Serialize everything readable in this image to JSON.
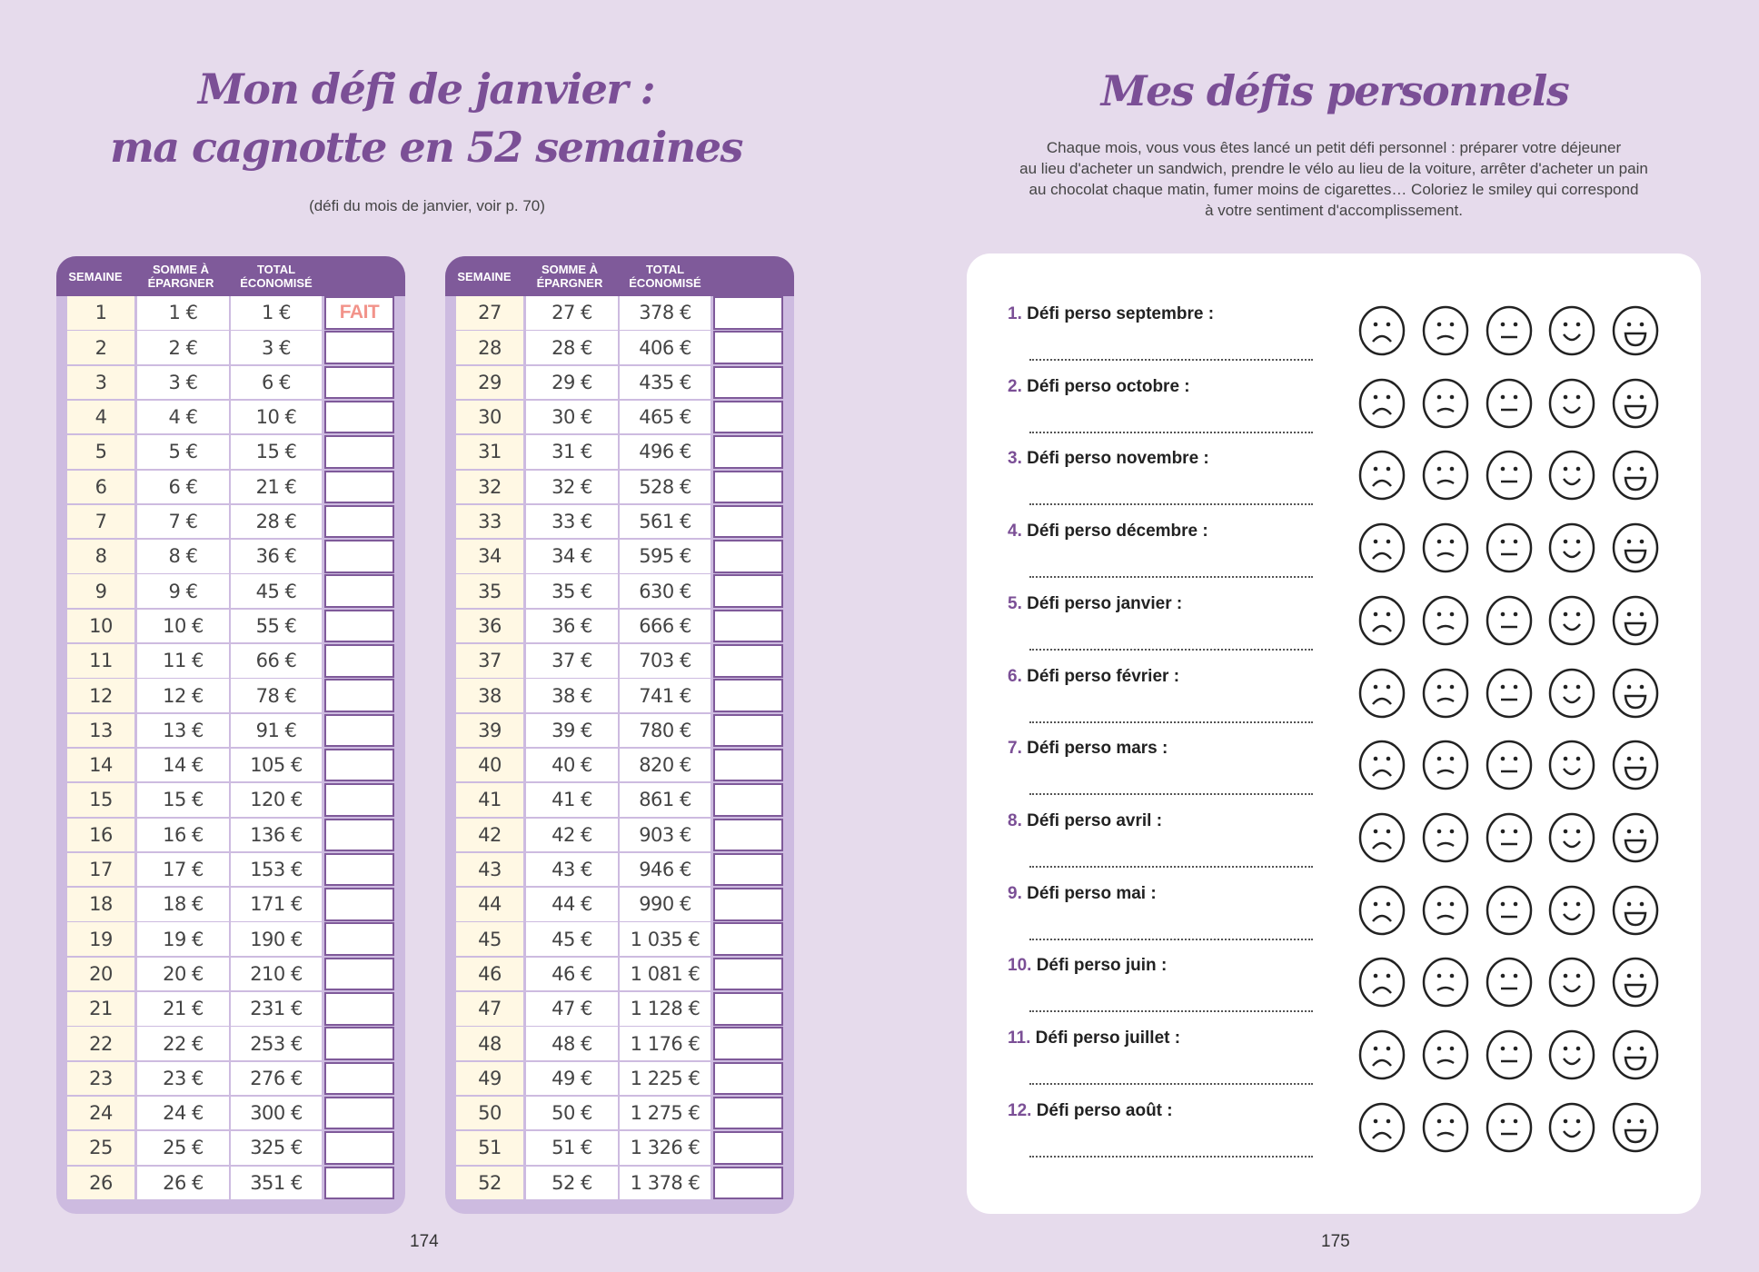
{
  "left": {
    "title_line1": "Mon défi de janvier :",
    "title_line2": "ma cagnotte en 52 semaines",
    "subtitle": "(défi du mois de janvier, voir p. 70)",
    "headers": [
      "SEMAINE",
      "SOMME À ÉPARGNER",
      "TOTAL ÉCONOMISÉ",
      ""
    ],
    "done_label": "FAIT",
    "rows": [
      [
        "1",
        "1 €",
        "1 €"
      ],
      [
        "2",
        "2 €",
        "3 €"
      ],
      [
        "3",
        "3 €",
        "6 €"
      ],
      [
        "4",
        "4 €",
        "10 €"
      ],
      [
        "5",
        "5 €",
        "15 €"
      ],
      [
        "6",
        "6 €",
        "21 €"
      ],
      [
        "7",
        "7 €",
        "28 €"
      ],
      [
        "8",
        "8 €",
        "36 €"
      ],
      [
        "9",
        "9 €",
        "45 €"
      ],
      [
        "10",
        "10 €",
        "55 €"
      ],
      [
        "11",
        "11 €",
        "66 €"
      ],
      [
        "12",
        "12 €",
        "78 €"
      ],
      [
        "13",
        "13 €",
        "91 €"
      ],
      [
        "14",
        "14 €",
        "105 €"
      ],
      [
        "15",
        "15 €",
        "120 €"
      ],
      [
        "16",
        "16 €",
        "136 €"
      ],
      [
        "17",
        "17 €",
        "153 €"
      ],
      [
        "18",
        "18 €",
        "171 €"
      ],
      [
        "19",
        "19 €",
        "190 €"
      ],
      [
        "20",
        "20 €",
        "210 €"
      ],
      [
        "21",
        "21 €",
        "231 €"
      ],
      [
        "22",
        "22 €",
        "253 €"
      ],
      [
        "23",
        "23 €",
        "276 €"
      ],
      [
        "24",
        "24 €",
        "300 €"
      ],
      [
        "25",
        "25 €",
        "325 €"
      ],
      [
        "26",
        "26 €",
        "351 €"
      ],
      [
        "27",
        "27 €",
        "378 €"
      ],
      [
        "28",
        "28 €",
        "406 €"
      ],
      [
        "29",
        "29 €",
        "435 €"
      ],
      [
        "30",
        "30 €",
        "465 €"
      ],
      [
        "31",
        "31 €",
        "496 €"
      ],
      [
        "32",
        "32 €",
        "528 €"
      ],
      [
        "33",
        "33 €",
        "561 €"
      ],
      [
        "34",
        "34 €",
        "595 €"
      ],
      [
        "35",
        "35 €",
        "630 €"
      ],
      [
        "36",
        "36 €",
        "666 €"
      ],
      [
        "37",
        "37 €",
        "703 €"
      ],
      [
        "38",
        "38 €",
        "741 €"
      ],
      [
        "39",
        "39 €",
        "780 €"
      ],
      [
        "40",
        "40 €",
        "820 €"
      ],
      [
        "41",
        "41 €",
        "861 €"
      ],
      [
        "42",
        "42 €",
        "903 €"
      ],
      [
        "43",
        "43 €",
        "946 €"
      ],
      [
        "44",
        "44 €",
        "990 €"
      ],
      [
        "45",
        "45 €",
        "1 035 €"
      ],
      [
        "46",
        "46 €",
        "1 081 €"
      ],
      [
        "47",
        "47 €",
        "1 128 €"
      ],
      [
        "48",
        "48 €",
        "1 176 €"
      ],
      [
        "49",
        "49 €",
        "1 225 €"
      ],
      [
        "50",
        "50 €",
        "1 275 €"
      ],
      [
        "51",
        "51 €",
        "1 326 €"
      ],
      [
        "52",
        "52 €",
        "1 378 €"
      ]
    ],
    "page": "174"
  },
  "right": {
    "title": "Mes défis personnels",
    "description": [
      "Chaque mois, vous vous êtes lancé un petit défi personnel : préparer votre déjeuner",
      "au lieu d'acheter un sandwich, prendre le vélo au lieu de la voiture, arrêter d'acheter un pain",
      "au chocolat chaque matin, fumer moins de cigarettes… Coloriez le smiley qui correspond",
      "à votre sentiment d'accomplissement."
    ],
    "items": [
      {
        "n": "1.",
        "label": "Défi perso septembre :"
      },
      {
        "n": "2.",
        "label": "Défi perso octobre :"
      },
      {
        "n": "3.",
        "label": "Défi perso novembre :"
      },
      {
        "n": "4.",
        "label": "Défi perso décembre :"
      },
      {
        "n": "5.",
        "label": "Défi perso janvier :"
      },
      {
        "n": "6.",
        "label": "Défi perso février :"
      },
      {
        "n": "7.",
        "label": "Défi perso mars :"
      },
      {
        "n": "8.",
        "label": "Défi perso avril :"
      },
      {
        "n": "9.",
        "label": "Défi perso mai :"
      },
      {
        "n": "10.",
        "label": "Défi perso juin :"
      },
      {
        "n": "11.",
        "label": "Défi perso juillet :"
      },
      {
        "n": "12.",
        "label": "Défi perso août :"
      }
    ],
    "smileys": [
      "very-sad",
      "sad",
      "neutral",
      "happy",
      "very-happy"
    ],
    "page": "175"
  },
  "colors": {
    "accent": "#7b4f96",
    "header": "#7f5a9a",
    "done": "#f2938a",
    "page_bg": "#e6dbec"
  }
}
